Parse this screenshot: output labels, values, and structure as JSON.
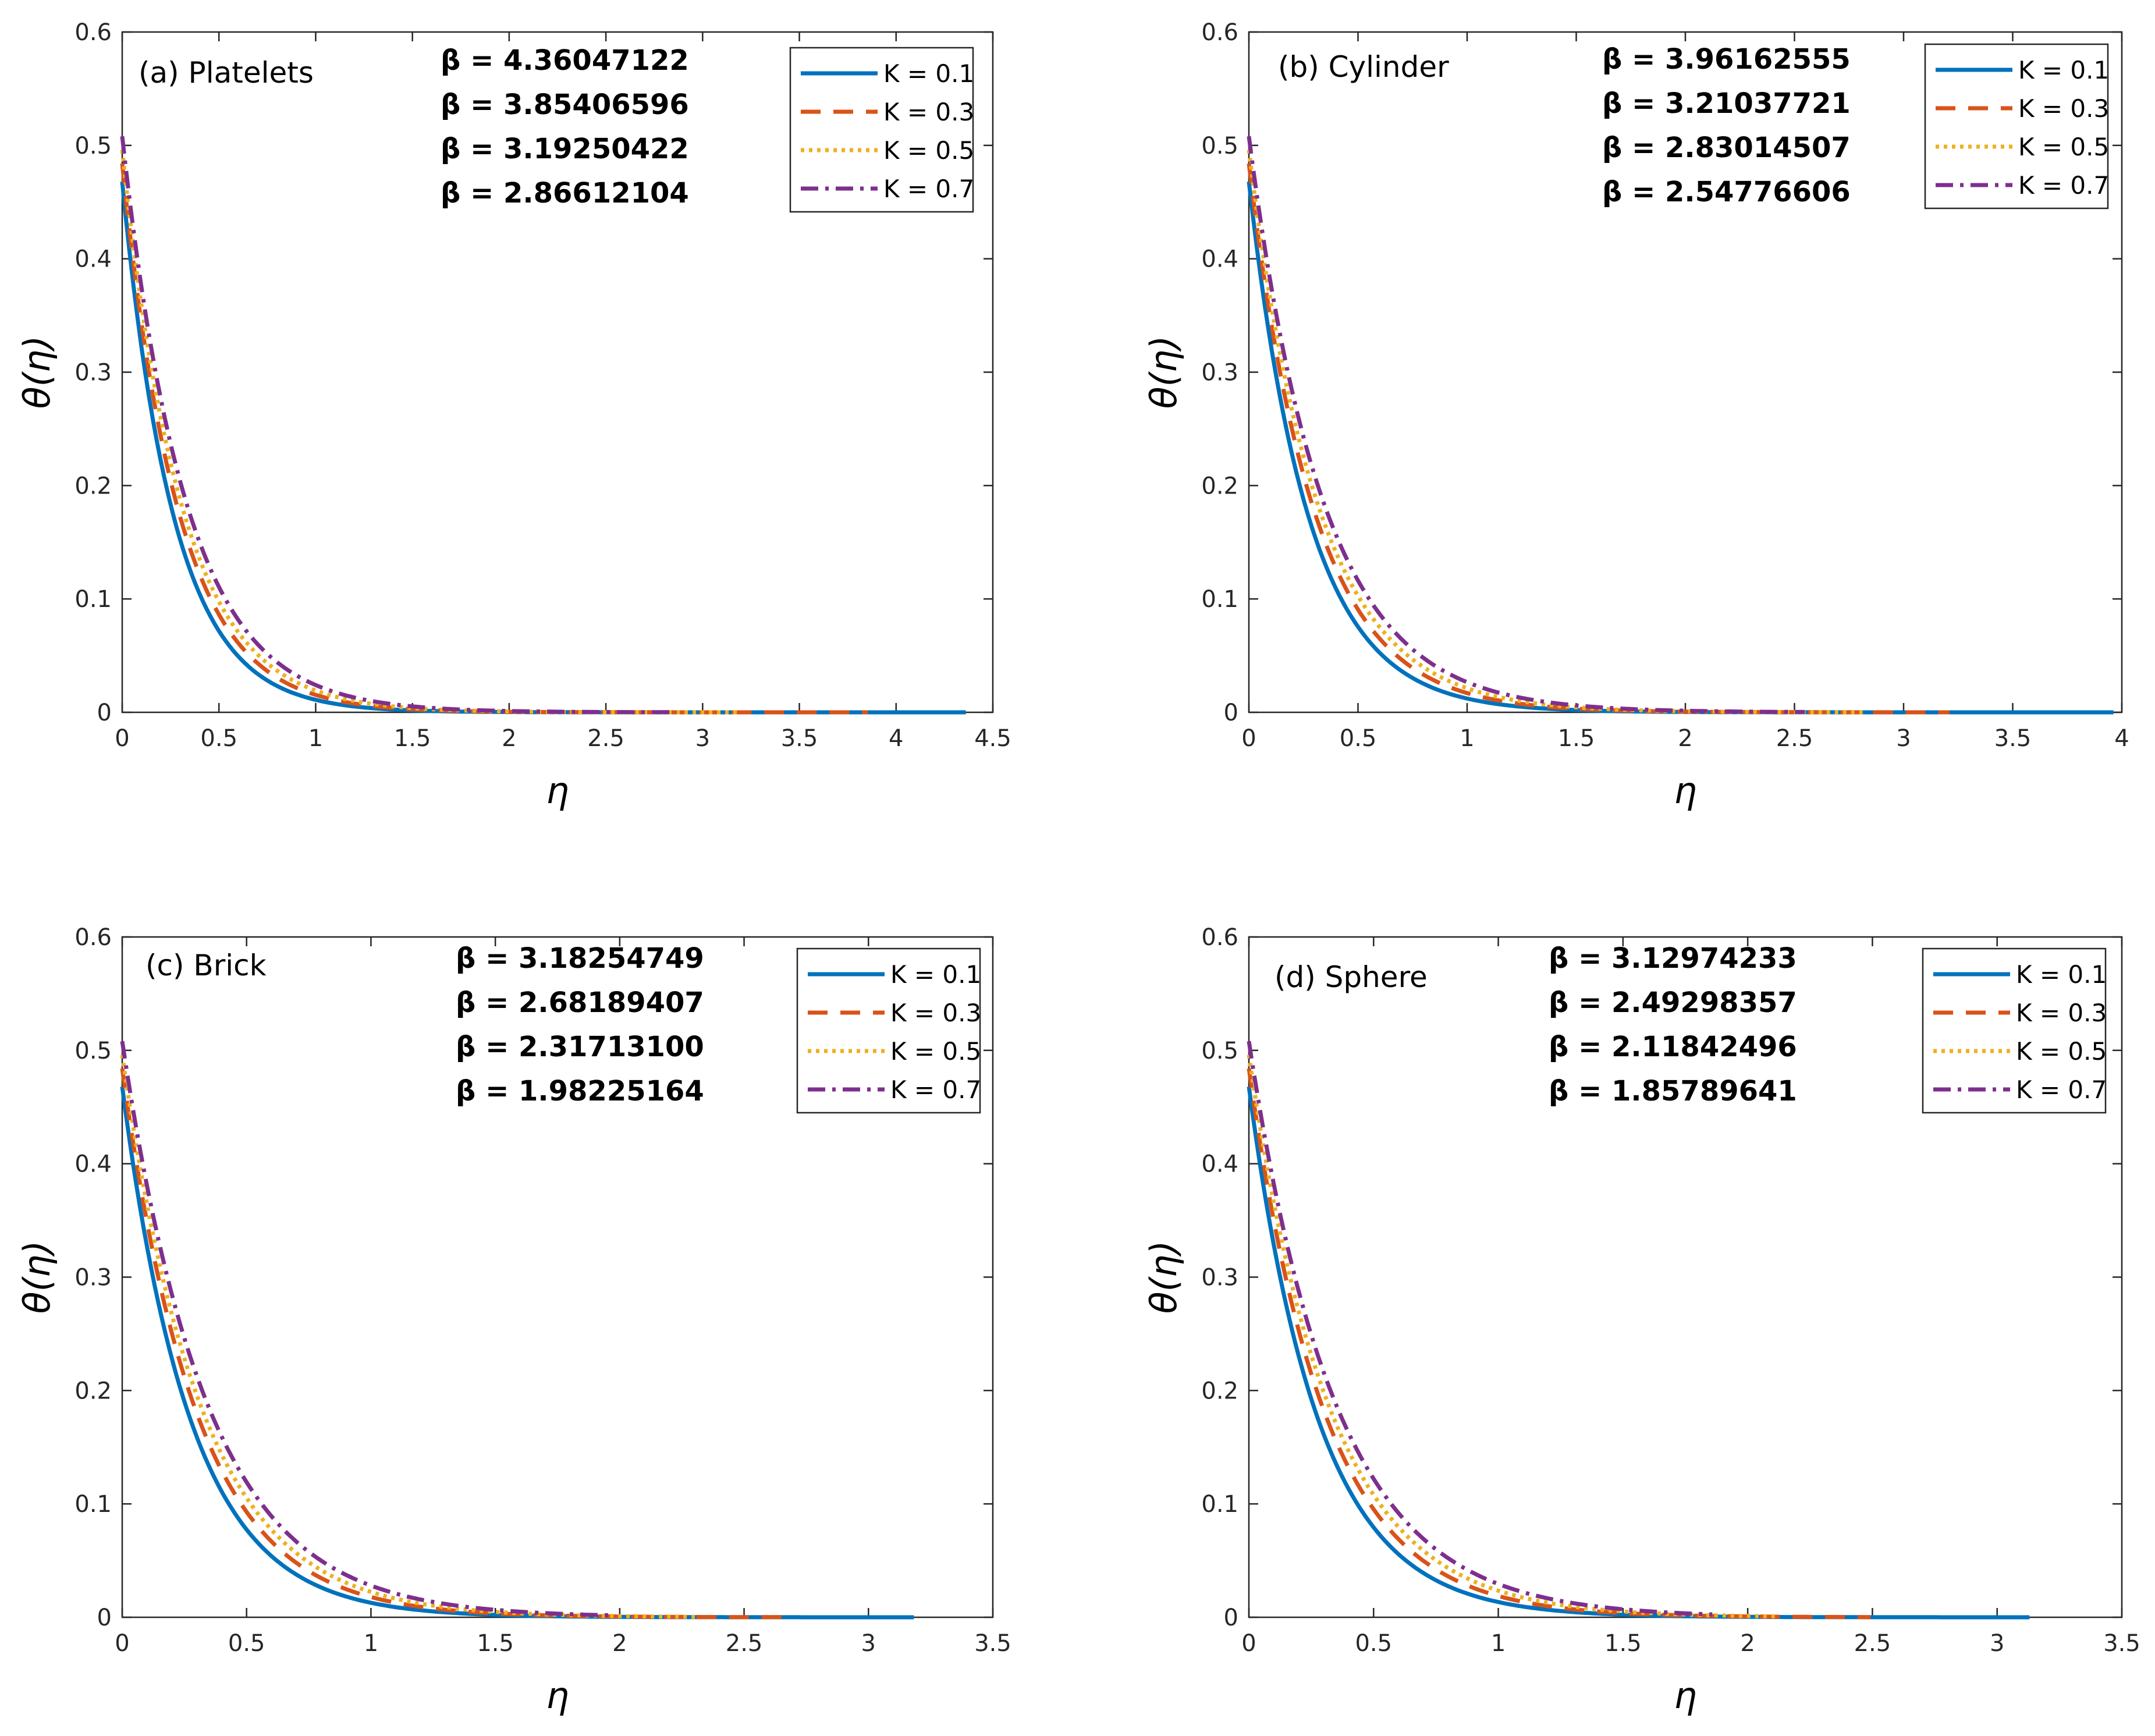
{
  "figure": {
    "colors": {
      "K01": "#0072BD",
      "K03": "#D95319",
      "K05": "#EDB120",
      "K07": "#7E2F8E",
      "axis": "#262626",
      "text": "#000000"
    }
  },
  "chart_data": [
    {
      "type": "line",
      "id": "a",
      "panel_label": "(a) Platelets",
      "xlabel": "η",
      "ylabel": "θ(η)",
      "xlim": [
        0,
        4.5
      ],
      "ylim": [
        0,
        0.6
      ],
      "xticks": [
        0,
        0.5,
        1,
        1.5,
        2,
        2.5,
        3,
        3.5,
        4,
        4.5
      ],
      "yticks": [
        0,
        0.1,
        0.2,
        0.3,
        0.4,
        0.5,
        0.6
      ],
      "xtick_labels": [
        "0",
        "0.5",
        "1",
        "1.5",
        "2",
        "2.5",
        "3",
        "3.5",
        "4",
        "4.5"
      ],
      "ytick_labels": [
        "0",
        "0.1",
        "0.2",
        "0.3",
        "0.4",
        "0.5",
        "0.6"
      ],
      "beta_labels": [
        "β = 4.36047122",
        "β = 3.85406596",
        "β = 3.19250422",
        "β = 2.86612104"
      ],
      "legend_position": "top-right",
      "series": [
        {
          "name": "K = 0.1",
          "key": "K01",
          "dash": "solid",
          "end": 4.36047122,
          "y0": 0.468,
          "decay": 3.75
        },
        {
          "name": "K = 0.3",
          "key": "K03",
          "dash": "dashed",
          "end": 3.85406596,
          "y0": 0.484,
          "decay": 3.45
        },
        {
          "name": "K = 0.5",
          "key": "K05",
          "dash": "dotted",
          "end": 3.19250422,
          "y0": 0.496,
          "decay": 3.25
        },
        {
          "name": "K = 0.7",
          "key": "K07",
          "dash": "dashdot",
          "end": 2.86612104,
          "y0": 0.508,
          "decay": 3.05
        }
      ]
    },
    {
      "type": "line",
      "id": "b",
      "panel_label": "(b) Cylinder",
      "xlabel": "η",
      "ylabel": "θ(η)",
      "xlim": [
        0,
        4
      ],
      "ylim": [
        0,
        0.6
      ],
      "xticks": [
        0,
        0.5,
        1,
        1.5,
        2,
        2.5,
        3,
        3.5,
        4
      ],
      "yticks": [
        0,
        0.1,
        0.2,
        0.3,
        0.4,
        0.5,
        0.6
      ],
      "xtick_labels": [
        "0",
        "0.5",
        "1",
        "1.5",
        "2",
        "2.5",
        "3",
        "3.5",
        "4"
      ],
      "ytick_labels": [
        "0",
        "0.1",
        "0.2",
        "0.3",
        "0.4",
        "0.5",
        "0.6"
      ],
      "beta_labels": [
        "β = 3.96162555",
        "β = 3.21037721",
        "β = 2.83014507",
        "β = 2.54776606"
      ],
      "legend_position": "top-right",
      "series": [
        {
          "name": "K = 0.1",
          "key": "K01",
          "dash": "solid",
          "end": 3.96162555,
          "y0": 0.468,
          "decay": 3.65
        },
        {
          "name": "K = 0.3",
          "key": "K03",
          "dash": "dashed",
          "end": 3.21037721,
          "y0": 0.484,
          "decay": 3.35
        },
        {
          "name": "K = 0.5",
          "key": "K05",
          "dash": "dotted",
          "end": 2.83014507,
          "y0": 0.496,
          "decay": 3.15
        },
        {
          "name": "K = 0.7",
          "key": "K07",
          "dash": "dashdot",
          "end": 2.54776606,
          "y0": 0.508,
          "decay": 2.95
        }
      ]
    },
    {
      "type": "line",
      "id": "c",
      "panel_label": "(c) Brick",
      "xlabel": "η",
      "ylabel": "θ(η)",
      "xlim": [
        0,
        3.5
      ],
      "ylim": [
        0,
        0.6
      ],
      "xticks": [
        0,
        0.5,
        1,
        1.5,
        2,
        2.5,
        3,
        3.5
      ],
      "yticks": [
        0,
        0.1,
        0.2,
        0.3,
        0.4,
        0.5,
        0.6
      ],
      "xtick_labels": [
        "0",
        "0.5",
        "1",
        "1.5",
        "2",
        "2.5",
        "3",
        "3.5"
      ],
      "ytick_labels": [
        "0",
        "0.1",
        "0.2",
        "0.3",
        "0.4",
        "0.5",
        "0.6"
      ],
      "beta_labels": [
        "β = 3.18254749",
        "β = 2.68189407",
        "β = 2.31713100",
        "β = 1.98225164"
      ],
      "legend_position": "top-right",
      "series": [
        {
          "name": "K = 0.1",
          "key": "K01",
          "dash": "solid",
          "end": 3.18254749,
          "y0": 0.468,
          "decay": 3.6
        },
        {
          "name": "K = 0.3",
          "key": "K03",
          "dash": "dashed",
          "end": 2.68189407,
          "y0": 0.484,
          "decay": 3.3
        },
        {
          "name": "K = 0.5",
          "key": "K05",
          "dash": "dotted",
          "end": 2.317131,
          "y0": 0.496,
          "decay": 3.1
        },
        {
          "name": "K = 0.7",
          "key": "K07",
          "dash": "dashdot",
          "end": 1.98225164,
          "y0": 0.508,
          "decay": 2.9
        }
      ]
    },
    {
      "type": "line",
      "id": "d",
      "panel_label": "(d) Sphere",
      "xlabel": "η",
      "ylabel": "θ(η)",
      "xlim": [
        0,
        3.5
      ],
      "ylim": [
        0,
        0.6
      ],
      "xticks": [
        0,
        0.5,
        1,
        1.5,
        2,
        2.5,
        3,
        3.5
      ],
      "yticks": [
        0,
        0.1,
        0.2,
        0.3,
        0.4,
        0.5,
        0.6
      ],
      "xtick_labels": [
        "0",
        "0.5",
        "1",
        "1.5",
        "2",
        "2.5",
        "3",
        "3.5"
      ],
      "ytick_labels": [
        "0",
        "0.1",
        "0.2",
        "0.3",
        "0.4",
        "0.5",
        "0.6"
      ],
      "beta_labels": [
        "β = 3.12974233",
        "β = 2.49298357",
        "β = 2.11842496",
        "β = 1.85789641"
      ],
      "legend_position": "top-right",
      "series": [
        {
          "name": "K = 0.1",
          "key": "K01",
          "dash": "solid",
          "end": 3.12974233,
          "y0": 0.468,
          "decay": 3.55
        },
        {
          "name": "K = 0.3",
          "key": "K03",
          "dash": "dashed",
          "end": 2.49298357,
          "y0": 0.484,
          "decay": 3.25
        },
        {
          "name": "K = 0.5",
          "key": "K05",
          "dash": "dotted",
          "end": 2.11842496,
          "y0": 0.496,
          "decay": 3.05
        },
        {
          "name": "K = 0.7",
          "key": "K07",
          "dash": "dashdot",
          "end": 1.85789641,
          "y0": 0.508,
          "decay": 2.85
        }
      ]
    }
  ]
}
